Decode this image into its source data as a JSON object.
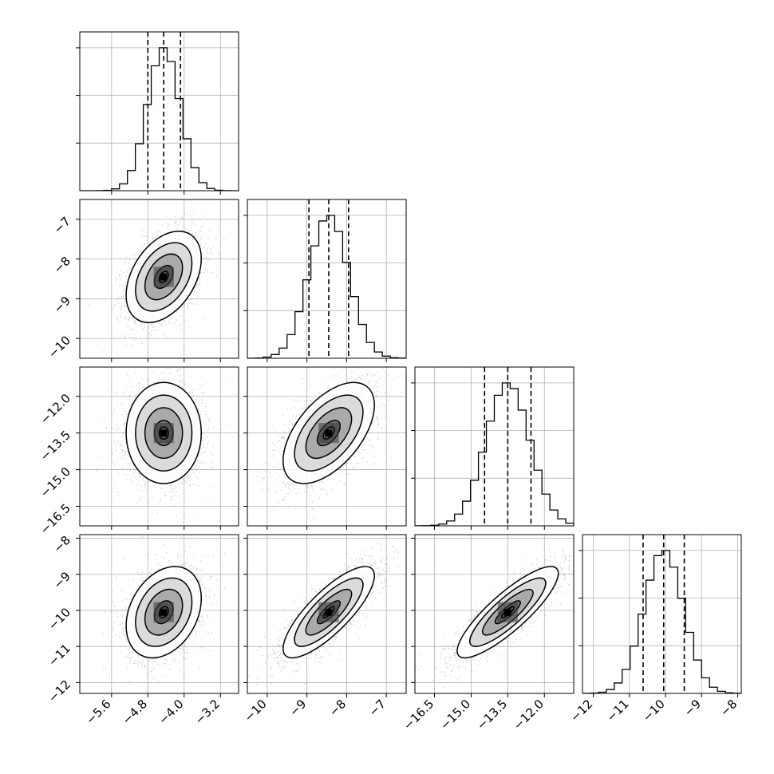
{
  "colors": {
    "frame": "#000000",
    "grid": "#b0b0b0",
    "scatter": "#9a9a9a",
    "quantile_line": "#000000"
  },
  "chart_data": {
    "type": "corner",
    "title": "",
    "grid": true,
    "parameters": [
      {
        "index": 0,
        "mean": -4.45,
        "sd": 0.36,
        "range": [
          -6.3,
          -2.8
        ],
        "ticks": [
          -5.6,
          -4.8,
          -4.0,
          -3.2
        ],
        "tick_labels": [
          "−5.6",
          "−4.8",
          "−4.0",
          "−3.2"
        ],
        "quantiles": [
          -4.8,
          -4.45,
          -4.08
        ]
      },
      {
        "index": 1,
        "mean": -8.45,
        "sd": 0.5,
        "range": [
          -10.5,
          -6.5
        ],
        "ticks": [
          -10,
          -9,
          -8,
          -7
        ],
        "tick_labels": [
          "−10",
          "−9",
          "−8",
          "−7"
        ],
        "quantiles": [
          -8.95,
          -8.45,
          -7.95
        ]
      },
      {
        "index": 2,
        "mean": -13.5,
        "sd": 0.9,
        "range": [
          -17.3,
          -10.8
        ],
        "ticks": [
          -16.5,
          -15.0,
          -13.5,
          -12.0
        ],
        "tick_labels": [
          "−16.5",
          "−15.0",
          "−13.5",
          "−12.0"
        ],
        "quantiles": [
          -14.45,
          -13.5,
          -12.55
        ]
      },
      {
        "index": 3,
        "mean": -10.05,
        "sd": 0.55,
        "range": [
          -12.3,
          -7.9
        ],
        "ticks": [
          -12,
          -11,
          -10,
          -9,
          -8
        ],
        "tick_labels": [
          "−12",
          "−11",
          "−10",
          "−9",
          "−8"
        ],
        "quantiles": [
          -10.62,
          -10.05,
          -9.48
        ]
      }
    ],
    "correlations": [
      [
        1.0,
        0.4,
        0.0,
        0.3
      ],
      [
        0.4,
        1.0,
        0.55,
        0.8
      ],
      [
        0.0,
        0.55,
        1.0,
        0.85
      ],
      [
        0.3,
        0.8,
        0.85,
        1.0
      ]
    ],
    "contour_levels_sigma": [
      0.5,
      1.0,
      1.5,
      2.0
    ]
  }
}
